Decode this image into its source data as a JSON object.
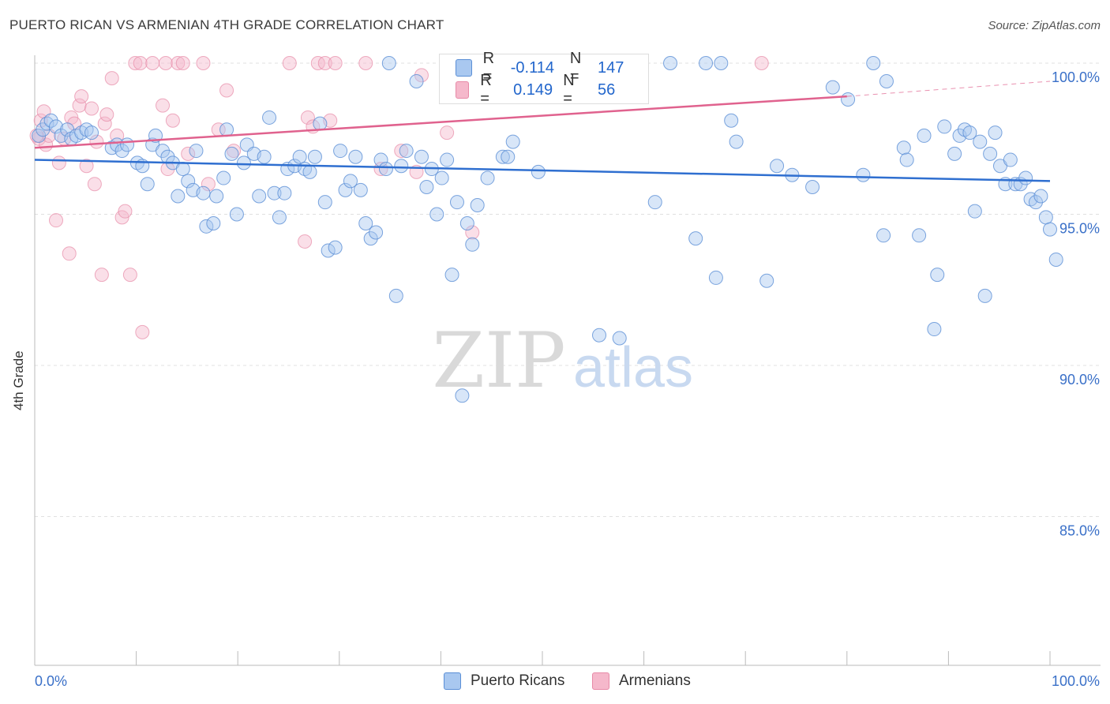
{
  "title": "PUERTO RICAN VS ARMENIAN 4TH GRADE CORRELATION CHART",
  "source": "Source: ZipAtlas.com",
  "watermark": {
    "zip": "ZIP",
    "atlas": "atlas"
  },
  "legend_top": {
    "rows": [
      {
        "r_label": "R =",
        "r_value": "-0.114",
        "n_label": "N =",
        "n_value": "147"
      },
      {
        "r_label": "R =",
        "r_value": "0.149",
        "n_label": "N =",
        "n_value": "56"
      }
    ]
  },
  "legend_bottom": [
    "Puerto Ricans",
    "Armenians"
  ],
  "colors": {
    "blue_fill": "#a9c8f0",
    "blue_stroke": "#5b8fd6",
    "blue_line": "#2f6fd0",
    "pink_fill": "#f5b8cb",
    "pink_stroke": "#e78aa7",
    "pink_line": "#e0628e",
    "axis_text": "#3a70c8",
    "grid": "#e0e0e0"
  },
  "chart_data": {
    "type": "scatter",
    "title": "PUERTO RICAN VS ARMENIAN 4TH GRADE CORRELATION CHART",
    "xlabel": "",
    "ylabel": "4th Grade",
    "xlim": [
      0,
      100
    ],
    "ylim": [
      80.0,
      100.8
    ],
    "x_tick_labels": [
      "0.0%",
      "100.0%"
    ],
    "y_ticks": [
      100,
      95,
      90,
      85
    ],
    "y_tick_labels": [
      "100.0%",
      "95.0%",
      "90.0%",
      "85.0%"
    ],
    "series": [
      {
        "name": "Puerto Ricans",
        "R": -0.114,
        "N": 147,
        "trend": {
          "x": [
            0,
            100
          ],
          "y": [
            96.8,
            96.1
          ]
        },
        "points": [
          [
            0.4,
            97.6
          ],
          [
            0.8,
            97.8
          ],
          [
            1.2,
            98.0
          ],
          [
            1.6,
            98.1
          ],
          [
            2.1,
            97.9
          ],
          [
            2.6,
            97.6
          ],
          [
            3.2,
            97.8
          ],
          [
            3.6,
            97.5
          ],
          [
            4.1,
            97.6
          ],
          [
            4.6,
            97.7
          ],
          [
            5.1,
            97.8
          ],
          [
            5.6,
            97.7
          ],
          [
            7.6,
            97.2
          ],
          [
            8.1,
            97.3
          ],
          [
            8.6,
            97.1
          ],
          [
            9.1,
            97.3
          ],
          [
            10.1,
            96.7
          ],
          [
            10.6,
            96.6
          ],
          [
            11.1,
            96.0
          ],
          [
            11.6,
            97.3
          ],
          [
            11.9,
            97.6
          ],
          [
            12.6,
            97.1
          ],
          [
            13.1,
            96.9
          ],
          [
            13.6,
            96.7
          ],
          [
            14.1,
            95.6
          ],
          [
            14.6,
            96.5
          ],
          [
            15.1,
            96.1
          ],
          [
            15.6,
            95.8
          ],
          [
            15.9,
            97.1
          ],
          [
            16.6,
            95.7
          ],
          [
            16.9,
            94.6
          ],
          [
            17.6,
            94.7
          ],
          [
            17.9,
            95.6
          ],
          [
            18.6,
            96.2
          ],
          [
            18.9,
            97.8
          ],
          [
            19.4,
            97.0
          ],
          [
            19.9,
            95.0
          ],
          [
            20.6,
            96.7
          ],
          [
            20.9,
            97.3
          ],
          [
            21.6,
            97.0
          ],
          [
            22.1,
            95.6
          ],
          [
            22.6,
            96.9
          ],
          [
            23.1,
            98.2
          ],
          [
            23.6,
            95.7
          ],
          [
            24.1,
            94.9
          ],
          [
            24.6,
            95.7
          ],
          [
            24.9,
            96.5
          ],
          [
            25.6,
            96.6
          ],
          [
            26.1,
            96.9
          ],
          [
            26.6,
            96.5
          ],
          [
            27.1,
            96.4
          ],
          [
            27.6,
            96.9
          ],
          [
            28.1,
            98.0
          ],
          [
            28.6,
            95.4
          ],
          [
            28.9,
            93.8
          ],
          [
            29.6,
            93.9
          ],
          [
            30.1,
            97.1
          ],
          [
            30.6,
            95.8
          ],
          [
            31.1,
            96.1
          ],
          [
            31.6,
            96.9
          ],
          [
            32.1,
            95.8
          ],
          [
            32.6,
            94.7
          ],
          [
            33.1,
            94.2
          ],
          [
            33.6,
            94.4
          ],
          [
            34.1,
            96.8
          ],
          [
            34.6,
            96.5
          ],
          [
            34.9,
            100.0
          ],
          [
            35.6,
            92.3
          ],
          [
            36.1,
            96.6
          ],
          [
            36.6,
            97.1
          ],
          [
            37.6,
            99.4
          ],
          [
            38.1,
            96.9
          ],
          [
            38.6,
            95.9
          ],
          [
            39.1,
            96.5
          ],
          [
            39.6,
            95.0
          ],
          [
            40.1,
            96.2
          ],
          [
            40.6,
            96.8
          ],
          [
            41.1,
            93.0
          ],
          [
            41.6,
            95.4
          ],
          [
            42.1,
            89.0
          ],
          [
            42.6,
            94.7
          ],
          [
            43.1,
            94.0
          ],
          [
            43.6,
            95.3
          ],
          [
            44.6,
            96.2
          ],
          [
            46.1,
            96.9
          ],
          [
            46.6,
            96.9
          ],
          [
            47.1,
            97.4
          ],
          [
            48.1,
            100.0
          ],
          [
            48.6,
            100.0
          ],
          [
            49.6,
            96.4
          ],
          [
            51.6,
            100.0
          ],
          [
            53.1,
            100.0
          ],
          [
            55.6,
            91.0
          ],
          [
            57.6,
            90.9
          ],
          [
            59.1,
            100.0
          ],
          [
            59.6,
            100.0
          ],
          [
            61.1,
            95.4
          ],
          [
            62.6,
            100.0
          ],
          [
            65.1,
            94.2
          ],
          [
            66.1,
            100.0
          ],
          [
            67.1,
            92.9
          ],
          [
            67.6,
            100.0
          ],
          [
            68.6,
            98.1
          ],
          [
            69.1,
            97.4
          ],
          [
            72.1,
            92.8
          ],
          [
            73.1,
            96.6
          ],
          [
            74.6,
            96.3
          ],
          [
            76.6,
            95.9
          ],
          [
            78.6,
            99.2
          ],
          [
            80.1,
            98.8
          ],
          [
            81.6,
            96.3
          ],
          [
            82.6,
            100.0
          ],
          [
            83.6,
            94.3
          ],
          [
            83.9,
            99.4
          ],
          [
            85.6,
            97.2
          ],
          [
            85.9,
            96.8
          ],
          [
            87.1,
            94.3
          ],
          [
            87.6,
            97.6
          ],
          [
            88.6,
            91.2
          ],
          [
            88.9,
            93.0
          ],
          [
            89.6,
            97.9
          ],
          [
            90.6,
            97.0
          ],
          [
            91.1,
            97.6
          ],
          [
            91.6,
            97.8
          ],
          [
            92.1,
            97.7
          ],
          [
            92.6,
            95.1
          ],
          [
            93.1,
            97.4
          ],
          [
            93.6,
            92.3
          ],
          [
            94.1,
            97.0
          ],
          [
            94.6,
            97.7
          ],
          [
            95.1,
            96.6
          ],
          [
            95.6,
            96.0
          ],
          [
            96.1,
            96.8
          ],
          [
            96.6,
            96.0
          ],
          [
            97.1,
            96.0
          ],
          [
            97.6,
            96.2
          ],
          [
            98.1,
            95.5
          ],
          [
            98.6,
            95.4
          ],
          [
            99.1,
            95.6
          ],
          [
            99.6,
            94.9
          ],
          [
            100.0,
            94.5
          ],
          [
            100.6,
            93.5
          ]
        ]
      },
      {
        "name": "Armenians",
        "R": 0.149,
        "N": 56,
        "trend": {
          "x": [
            0,
            80
          ],
          "y": [
            97.2,
            98.9
          ]
        },
        "trend_dashed": {
          "x": [
            80,
            100
          ],
          "y": [
            98.9,
            99.4
          ]
        },
        "points": [
          [
            0.4,
            97.5
          ],
          [
            0.6,
            98.1
          ],
          [
            0.9,
            98.4
          ],
          [
            1.1,
            97.3
          ],
          [
            1.4,
            97.6
          ],
          [
            2.1,
            94.8
          ],
          [
            2.4,
            96.7
          ],
          [
            2.9,
            97.5
          ],
          [
            3.4,
            93.7
          ],
          [
            3.6,
            98.2
          ],
          [
            3.9,
            98.0
          ],
          [
            4.4,
            98.6
          ],
          [
            4.6,
            98.9
          ],
          [
            5.1,
            96.6
          ],
          [
            5.6,
            98.5
          ],
          [
            5.9,
            96.0
          ],
          [
            6.1,
            97.4
          ],
          [
            6.6,
            93.0
          ],
          [
            6.9,
            98.0
          ],
          [
            7.1,
            98.3
          ],
          [
            7.6,
            99.5
          ],
          [
            8.1,
            97.6
          ],
          [
            8.6,
            94.9
          ],
          [
            8.9,
            95.1
          ],
          [
            9.4,
            93.0
          ],
          [
            9.9,
            100.0
          ],
          [
            10.4,
            100.0
          ],
          [
            10.6,
            91.1
          ],
          [
            11.6,
            100.0
          ],
          [
            12.6,
            98.6
          ],
          [
            12.9,
            100.0
          ],
          [
            13.1,
            96.5
          ],
          [
            13.6,
            98.1
          ],
          [
            14.1,
            100.0
          ],
          [
            14.6,
            100.0
          ],
          [
            15.1,
            97.0
          ],
          [
            16.6,
            100.0
          ],
          [
            17.1,
            96.0
          ],
          [
            18.1,
            97.8
          ],
          [
            18.9,
            99.1
          ],
          [
            19.6,
            97.1
          ],
          [
            25.1,
            100.0
          ],
          [
            26.6,
            94.1
          ],
          [
            26.9,
            98.2
          ],
          [
            27.4,
            97.9
          ],
          [
            27.9,
            100.0
          ],
          [
            28.6,
            100.0
          ],
          [
            29.1,
            98.1
          ],
          [
            29.6,
            100.0
          ],
          [
            32.6,
            100.0
          ],
          [
            34.1,
            96.5
          ],
          [
            36.1,
            97.1
          ],
          [
            37.6,
            96.4
          ],
          [
            38.1,
            99.6
          ],
          [
            40.6,
            97.7
          ],
          [
            43.1,
            94.4
          ],
          [
            71.6,
            100.0
          ],
          [
            0.2,
            97.6
          ]
        ]
      }
    ]
  }
}
